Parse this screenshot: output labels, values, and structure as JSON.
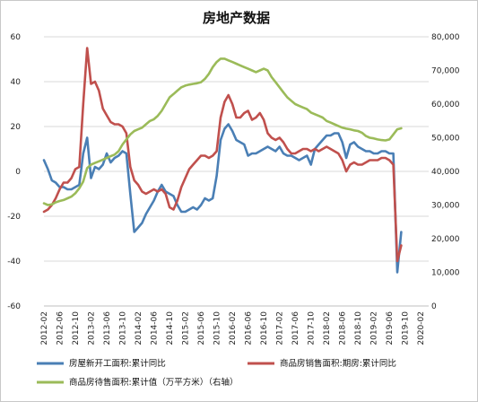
{
  "chart_data": {
    "type": "line",
    "title": "房地产数据",
    "xlabel": "",
    "ylabel_left": "",
    "ylabel_right": "",
    "x_tick_labels": [
      "2012-02",
      "2012-06",
      "2012-10",
      "2013-02",
      "2013-06",
      "2013-10",
      "2014-02",
      "2014-06",
      "2014-10",
      "2015-02",
      "2015-06",
      "2015-10",
      "2016-02",
      "2016-06",
      "2016-10",
      "2017-02",
      "2017-06",
      "2017-10",
      "2018-02",
      "2018-06",
      "2018-10",
      "2019-02",
      "2019-06",
      "2019-10",
      "2020-02"
    ],
    "x_range": [
      0,
      98
    ],
    "ylim_left": [
      -60,
      60
    ],
    "yticks_left": [
      -60,
      -40,
      -20,
      0,
      20,
      40,
      60
    ],
    "ylim_right": [
      0,
      80000
    ],
    "yticks_right": [
      0,
      10000,
      20000,
      30000,
      40000,
      50000,
      60000,
      70000,
      80000
    ],
    "yticks_right_labels": [
      "0",
      "10,000",
      "20,000",
      "30,000",
      "40,000",
      "50,000",
      "60,000",
      "70,000",
      "80,000"
    ],
    "grid": "horizontal",
    "legend_position": "bottom",
    "series": [
      {
        "name": "房屋新开工面积:累计同比",
        "axis": "left",
        "color": "#4a7fb5",
        "values": [
          [
            0,
            5
          ],
          [
            1,
            1
          ],
          [
            2,
            -4
          ],
          [
            3,
            -5
          ],
          [
            4,
            -7
          ],
          [
            5,
            -7
          ],
          [
            6,
            -8
          ],
          [
            7,
            -8
          ],
          [
            8,
            -7
          ],
          [
            9,
            -6
          ],
          [
            10,
            8
          ],
          [
            11,
            15
          ],
          [
            12,
            -3
          ],
          [
            13,
            2
          ],
          [
            14,
            1
          ],
          [
            15,
            3
          ],
          [
            16,
            8
          ],
          [
            17,
            4
          ],
          [
            18,
            6
          ],
          [
            19,
            7
          ],
          [
            20,
            9
          ],
          [
            21,
            8
          ],
          [
            22,
            -10
          ],
          [
            23,
            -27
          ],
          [
            24,
            -25
          ],
          [
            25,
            -23
          ],
          [
            26,
            -19
          ],
          [
            27,
            -16
          ],
          [
            28,
            -13
          ],
          [
            29,
            -9
          ],
          [
            30,
            -6
          ],
          [
            31,
            -9
          ],
          [
            32,
            -10
          ],
          [
            33,
            -11
          ],
          [
            34,
            -15
          ],
          [
            35,
            -18
          ],
          [
            36,
            -18
          ],
          [
            37,
            -17
          ],
          [
            38,
            -16
          ],
          [
            39,
            -17
          ],
          [
            40,
            -15
          ],
          [
            41,
            -12
          ],
          [
            42,
            -13
          ],
          [
            43,
            -12
          ],
          [
            44,
            -2
          ],
          [
            45,
            14
          ],
          [
            46,
            19
          ],
          [
            47,
            21
          ],
          [
            48,
            18
          ],
          [
            49,
            14
          ],
          [
            50,
            13
          ],
          [
            51,
            12
          ],
          [
            52,
            7
          ],
          [
            53,
            8
          ],
          [
            54,
            8
          ],
          [
            55,
            9
          ],
          [
            56,
            10
          ],
          [
            57,
            11
          ],
          [
            58,
            10
          ],
          [
            59,
            9
          ],
          [
            60,
            11
          ],
          [
            61,
            8
          ],
          [
            62,
            7
          ],
          [
            63,
            7
          ],
          [
            64,
            6
          ],
          [
            65,
            5
          ],
          [
            66,
            6
          ],
          [
            67,
            7
          ],
          [
            68,
            3
          ],
          [
            69,
            10
          ],
          [
            70,
            12
          ],
          [
            71,
            14
          ],
          [
            72,
            16
          ],
          [
            73,
            16
          ],
          [
            74,
            17
          ],
          [
            75,
            17
          ],
          [
            76,
            13
          ],
          [
            77,
            6
          ],
          [
            78,
            12
          ],
          [
            79,
            13
          ],
          [
            80,
            11
          ],
          [
            81,
            10
          ],
          [
            82,
            9
          ],
          [
            83,
            9
          ],
          [
            84,
            8
          ],
          [
            85,
            8
          ],
          [
            86,
            9
          ],
          [
            87,
            9
          ],
          [
            88,
            8
          ],
          [
            89,
            8
          ],
          [
            90,
            -45
          ],
          [
            91,
            -27
          ]
        ]
      },
      {
        "name": "商品房销售面积:期房:累计同比",
        "axis": "left",
        "color": "#c0504d",
        "values": [
          [
            0,
            -18
          ],
          [
            1,
            -17
          ],
          [
            2,
            -15
          ],
          [
            3,
            -12
          ],
          [
            4,
            -8
          ],
          [
            5,
            -5
          ],
          [
            6,
            -5
          ],
          [
            7,
            -3
          ],
          [
            8,
            1
          ],
          [
            9,
            2
          ],
          [
            10,
            30
          ],
          [
            11,
            55
          ],
          [
            12,
            39
          ],
          [
            13,
            40
          ],
          [
            14,
            36
          ],
          [
            15,
            28
          ],
          [
            16,
            25
          ],
          [
            17,
            22
          ],
          [
            18,
            21
          ],
          [
            19,
            21
          ],
          [
            20,
            20
          ],
          [
            21,
            17
          ],
          [
            22,
            2
          ],
          [
            23,
            -4
          ],
          [
            24,
            -6
          ],
          [
            25,
            -9
          ],
          [
            26,
            -10
          ],
          [
            27,
            -9
          ],
          [
            28,
            -8
          ],
          [
            29,
            -9
          ],
          [
            30,
            -8
          ],
          [
            31,
            -10
          ],
          [
            32,
            -16
          ],
          [
            33,
            -17
          ],
          [
            34,
            -13
          ],
          [
            35,
            -7
          ],
          [
            36,
            -3
          ],
          [
            37,
            1
          ],
          [
            38,
            3
          ],
          [
            39,
            5
          ],
          [
            40,
            7
          ],
          [
            41,
            7
          ],
          [
            42,
            6
          ],
          [
            43,
            7
          ],
          [
            44,
            9
          ],
          [
            45,
            24
          ],
          [
            46,
            31
          ],
          [
            47,
            34
          ],
          [
            48,
            30
          ],
          [
            49,
            24
          ],
          [
            50,
            24
          ],
          [
            51,
            26
          ],
          [
            52,
            27
          ],
          [
            53,
            23
          ],
          [
            54,
            24
          ],
          [
            55,
            26
          ],
          [
            56,
            23
          ],
          [
            57,
            17
          ],
          [
            58,
            15
          ],
          [
            59,
            14
          ],
          [
            60,
            15
          ],
          [
            61,
            13
          ],
          [
            62,
            10
          ],
          [
            63,
            8
          ],
          [
            64,
            8
          ],
          [
            65,
            9
          ],
          [
            66,
            10
          ],
          [
            67,
            10
          ],
          [
            68,
            9
          ],
          [
            69,
            10
          ],
          [
            70,
            9
          ],
          [
            71,
            10
          ],
          [
            72,
            11
          ],
          [
            73,
            10
          ],
          [
            74,
            9
          ],
          [
            75,
            8
          ],
          [
            76,
            5
          ],
          [
            77,
            0
          ],
          [
            78,
            3
          ],
          [
            79,
            4
          ],
          [
            80,
            3
          ],
          [
            81,
            3
          ],
          [
            82,
            4
          ],
          [
            83,
            5
          ],
          [
            84,
            5
          ],
          [
            85,
            5
          ],
          [
            86,
            6
          ],
          [
            87,
            6
          ],
          [
            88,
            5
          ],
          [
            89,
            3
          ],
          [
            90,
            -40
          ],
          [
            91,
            -33
          ]
        ]
      },
      {
        "name": "商品房待售面积:累计值（万平方米）（右轴）",
        "axis": "right",
        "color": "#9bbb59",
        "values": [
          [
            0,
            30500
          ],
          [
            1,
            30000
          ],
          [
            2,
            30200
          ],
          [
            3,
            30800
          ],
          [
            4,
            31200
          ],
          [
            5,
            31500
          ],
          [
            6,
            32000
          ],
          [
            7,
            32500
          ],
          [
            8,
            33500
          ],
          [
            9,
            35000
          ],
          [
            10,
            37000
          ],
          [
            11,
            41000
          ],
          [
            12,
            42000
          ],
          [
            13,
            42500
          ],
          [
            14,
            43000
          ],
          [
            15,
            43500
          ],
          [
            16,
            44000
          ],
          [
            17,
            44500
          ],
          [
            18,
            45000
          ],
          [
            19,
            46000
          ],
          [
            20,
            48000
          ],
          [
            21,
            49500
          ],
          [
            22,
            51000
          ],
          [
            23,
            52000
          ],
          [
            24,
            52500
          ],
          [
            25,
            53000
          ],
          [
            26,
            54000
          ],
          [
            27,
            55000
          ],
          [
            28,
            55500
          ],
          [
            29,
            56500
          ],
          [
            30,
            58000
          ],
          [
            31,
            60000
          ],
          [
            32,
            62000
          ],
          [
            33,
            63000
          ],
          [
            34,
            64000
          ],
          [
            35,
            65000
          ],
          [
            36,
            65500
          ],
          [
            37,
            65800
          ],
          [
            38,
            66000
          ],
          [
            39,
            66200
          ],
          [
            40,
            66500
          ],
          [
            41,
            67500
          ],
          [
            42,
            69000
          ],
          [
            43,
            71000
          ],
          [
            44,
            72500
          ],
          [
            45,
            73500
          ],
          [
            46,
            73500
          ],
          [
            47,
            73000
          ],
          [
            48,
            72500
          ],
          [
            49,
            72000
          ],
          [
            50,
            71500
          ],
          [
            51,
            71000
          ],
          [
            52,
            70500
          ],
          [
            53,
            70000
          ],
          [
            54,
            69500
          ],
          [
            55,
            70000
          ],
          [
            56,
            70500
          ],
          [
            57,
            70000
          ],
          [
            58,
            68000
          ],
          [
            59,
            66500
          ],
          [
            60,
            65000
          ],
          [
            61,
            63500
          ],
          [
            62,
            62000
          ],
          [
            63,
            61000
          ],
          [
            64,
            60000
          ],
          [
            65,
            59500
          ],
          [
            66,
            59000
          ],
          [
            67,
            58500
          ],
          [
            68,
            57500
          ],
          [
            69,
            57000
          ],
          [
            70,
            56500
          ],
          [
            71,
            56000
          ],
          [
            72,
            55000
          ],
          [
            73,
            54500
          ],
          [
            74,
            54000
          ],
          [
            75,
            53500
          ],
          [
            76,
            53000
          ],
          [
            77,
            52700
          ],
          [
            78,
            52500
          ],
          [
            79,
            52200
          ],
          [
            80,
            52000
          ],
          [
            81,
            51500
          ],
          [
            82,
            50500
          ],
          [
            83,
            50000
          ],
          [
            84,
            49800
          ],
          [
            85,
            49500
          ],
          [
            86,
            49300
          ],
          [
            87,
            49200
          ],
          [
            88,
            49500
          ],
          [
            89,
            51000
          ],
          [
            90,
            52500
          ],
          [
            91,
            52800
          ]
        ]
      }
    ]
  }
}
